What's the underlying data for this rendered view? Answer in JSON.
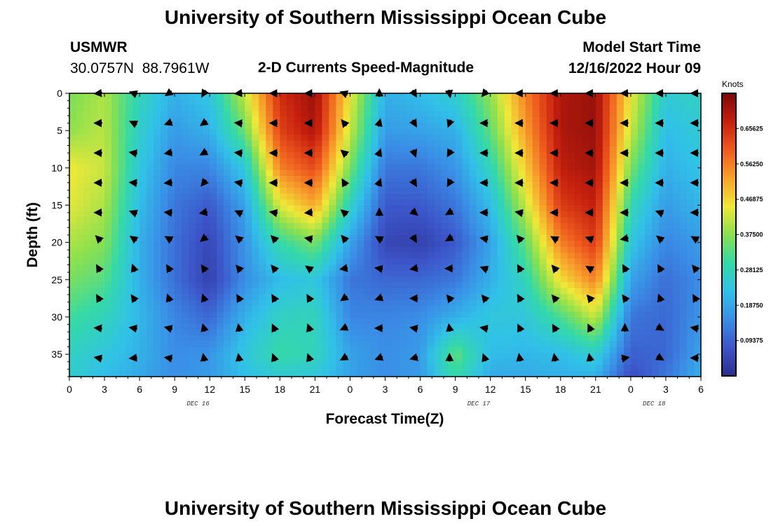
{
  "title_top": "University of Southern Mississippi Ocean Cube",
  "title_bottom": "University of Southern Mississippi Ocean Cube",
  "station": {
    "name": "USMWR",
    "lat": "30.0757N",
    "lon": "88.7961W"
  },
  "subtitle": "2-D Currents Speed-Magnitude",
  "model": {
    "label": "Model Start Time",
    "time": "12/16/2022 Hour 09"
  },
  "chart_data": {
    "type": "heatmap",
    "title": "2-D Currents Speed-Magnitude",
    "xlabel": "Forecast Time(Z)",
    "ylabel": "Depth (ft)",
    "x_tick_labels": [
      "0",
      "3",
      "6",
      "9",
      "12",
      "15",
      "18",
      "21",
      "0",
      "3",
      "6",
      "9",
      "12",
      "15",
      "18",
      "21",
      "0",
      "3",
      "6"
    ],
    "x_range_hours": [
      0,
      54
    ],
    "x_tick_step_hours": 3,
    "date_labels": [
      {
        "text": "DEC 16",
        "hour": 11
      },
      {
        "text": "DEC 17",
        "hour": 35
      },
      {
        "text": "DEC 18",
        "hour": 50
      }
    ],
    "y_ticks": [
      0,
      5,
      10,
      15,
      20,
      25,
      30,
      35
    ],
    "y_range_ft": [
      0,
      38
    ],
    "colorbar": {
      "unit": "Knots",
      "ticks": [
        "0.09375",
        "0.18750",
        "0.28125",
        "0.37500",
        "0.46875",
        "0.56250",
        "0.65625"
      ],
      "range": [
        0,
        0.75
      ],
      "colors": [
        "#2b2d8c",
        "#3c55c9",
        "#3a8ee6",
        "#31c1e8",
        "#34d9a8",
        "#8be04f",
        "#f0e838",
        "#f7a22c",
        "#ee5a1e",
        "#c6200e",
        "#7a0808"
      ]
    },
    "speed_grid": {
      "hours": [
        0,
        3,
        6,
        9,
        12,
        15,
        18,
        21,
        24,
        27,
        30,
        33,
        36,
        39,
        42,
        45,
        48,
        51,
        54
      ],
      "depths_ft": [
        0,
        5,
        10,
        15,
        20,
        25,
        30,
        35,
        38
      ],
      "values": [
        [
          0.36,
          0.38,
          0.45,
          0.44,
          0.4,
          0.36,
          0.31,
          0.27,
          0.26
        ],
        [
          0.4,
          0.41,
          0.42,
          0.4,
          0.37,
          0.33,
          0.28,
          0.24,
          0.22
        ],
        [
          0.28,
          0.26,
          0.24,
          0.22,
          0.2,
          0.2,
          0.21,
          0.2,
          0.19
        ],
        [
          0.2,
          0.17,
          0.14,
          0.12,
          0.11,
          0.11,
          0.14,
          0.15,
          0.15
        ],
        [
          0.24,
          0.2,
          0.14,
          0.08,
          0.05,
          0.04,
          0.1,
          0.16,
          0.17
        ],
        [
          0.42,
          0.35,
          0.24,
          0.18,
          0.16,
          0.15,
          0.2,
          0.24,
          0.22
        ],
        [
          0.66,
          0.63,
          0.56,
          0.44,
          0.3,
          0.22,
          0.27,
          0.3,
          0.25
        ],
        [
          0.72,
          0.7,
          0.62,
          0.52,
          0.36,
          0.24,
          0.28,
          0.28,
          0.24
        ],
        [
          0.45,
          0.42,
          0.36,
          0.27,
          0.18,
          0.12,
          0.14,
          0.18,
          0.18
        ],
        [
          0.2,
          0.17,
          0.12,
          0.08,
          0.05,
          0.1,
          0.14,
          0.15,
          0.15
        ],
        [
          0.22,
          0.18,
          0.12,
          0.08,
          0.04,
          0.1,
          0.15,
          0.17,
          0.17
        ],
        [
          0.26,
          0.2,
          0.16,
          0.12,
          0.08,
          0.12,
          0.2,
          0.34,
          0.3
        ],
        [
          0.38,
          0.34,
          0.28,
          0.22,
          0.18,
          0.2,
          0.24,
          0.22,
          0.19
        ],
        [
          0.56,
          0.53,
          0.48,
          0.42,
          0.34,
          0.28,
          0.24,
          0.21,
          0.19
        ],
        [
          0.7,
          0.7,
          0.68,
          0.64,
          0.56,
          0.46,
          0.32,
          0.22,
          0.2
        ],
        [
          0.72,
          0.72,
          0.71,
          0.68,
          0.64,
          0.56,
          0.42,
          0.26,
          0.2
        ],
        [
          0.45,
          0.42,
          0.36,
          0.29,
          0.24,
          0.18,
          0.12,
          0.09,
          0.06
        ],
        [
          0.25,
          0.22,
          0.2,
          0.17,
          0.14,
          0.11,
          0.1,
          0.1,
          0.12
        ],
        [
          0.27,
          0.25,
          0.23,
          0.21,
          0.17,
          0.15,
          0.16,
          0.18,
          0.2
        ]
      ]
    },
    "vectors": {
      "hours": [
        2.5,
        5.5,
        8.5,
        11.5,
        14.5,
        17.5,
        20.5,
        23.5,
        26.5,
        29.5,
        32.5,
        35.5,
        38.5,
        41.5,
        44.5,
        47.5,
        50.5,
        53.5
      ],
      "depths_ft": [
        0,
        4,
        8,
        12,
        16,
        19.5,
        23.5,
        27.5,
        31.5,
        35.5
      ],
      "angles_deg": [
        [
          185,
          160,
          215,
          240,
          185,
          180,
          180,
          160,
          90,
          300,
          280,
          230,
          180,
          180,
          180,
          180,
          180,
          180
        ],
        [
          180,
          155,
          200,
          215,
          175,
          180,
          180,
          130,
          75,
          300,
          250,
          180,
          180,
          180,
          180,
          180,
          180,
          180
        ],
        [
          180,
          170,
          190,
          210,
          175,
          180,
          180,
          140,
          70,
          290,
          240,
          180,
          180,
          180,
          180,
          180,
          180,
          180
        ],
        [
          180,
          175,
          185,
          230,
          170,
          180,
          180,
          120,
          70,
          300,
          240,
          180,
          180,
          180,
          180,
          180,
          180,
          180
        ],
        [
          180,
          160,
          175,
          190,
          155,
          170,
          185,
          140,
          90,
          320,
          210,
          180,
          170,
          180,
          180,
          180,
          160,
          180
        ],
        [
          135,
          145,
          150,
          220,
          140,
          135,
          170,
          130,
          150,
          300,
          210,
          170,
          130,
          150,
          160,
          190,
          140,
          150
        ],
        [
          120,
          110,
          120,
          125,
          130,
          130,
          145,
          190,
          170,
          190,
          180,
          160,
          120,
          130,
          150,
          120,
          120,
          130
        ],
        [
          120,
          125,
          110,
          110,
          120,
          120,
          120,
          215,
          200,
          180,
          130,
          130,
          120,
          130,
          130,
          125,
          110,
          120
        ],
        [
          175,
          170,
          165,
          105,
          100,
          115,
          110,
          205,
          180,
          170,
          100,
          170,
          115,
          120,
          115,
          90,
          330,
          170
        ],
        [
          170,
          185,
          170,
          100,
          100,
          110,
          110,
          210,
          200,
          195,
          90,
          110,
          100,
          100,
          100,
          10,
          330,
          180
        ]
      ]
    }
  }
}
